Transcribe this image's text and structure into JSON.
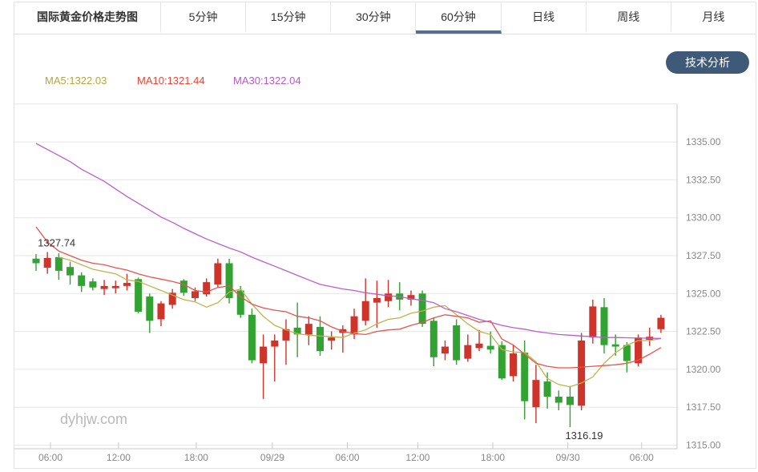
{
  "tabs": {
    "items": [
      {
        "label": "国际黄金价格走势图"
      },
      {
        "label": "5分钟"
      },
      {
        "label": "15分钟"
      },
      {
        "label": "30分钟"
      },
      {
        "label": "60分钟"
      },
      {
        "label": "日线"
      },
      {
        "label": "周线"
      },
      {
        "label": "月线"
      }
    ],
    "active_label": "60分钟",
    "active_index": 4
  },
  "toolbar": {
    "technical_analysis_label": "技术分析"
  },
  "legend": {
    "ma5": {
      "label": "MA5:1322.03",
      "color": "#b5a53c"
    },
    "ma10": {
      "label": "MA10:1321.44",
      "color": "#ee4433"
    },
    "ma30": {
      "label": "MA30:1322.04",
      "color": "#b05cc4"
    }
  },
  "watermark": "dyhjw.com",
  "chart_data": {
    "type": "candlestick",
    "title": "国际黄金价格走势图",
    "timeframe": "60分钟",
    "legend_values": {
      "MA5": 1322.03,
      "MA10": 1321.44,
      "MA30": 1322.04
    },
    "ylim": [
      1315.0,
      1337.5
    ],
    "grid": true,
    "y_axis": {
      "ticks": [
        {
          "label": "1335.00",
          "price": 1335.0
        },
        {
          "label": "1332.50",
          "price": 1332.5
        },
        {
          "label": "1330.00",
          "price": 1330.0
        },
        {
          "label": "1327.50",
          "price": 1327.5
        },
        {
          "label": "1325.00",
          "price": 1325.0
        },
        {
          "label": "1322.50",
          "price": 1322.5
        },
        {
          "label": "1320.00",
          "price": 1320.0
        },
        {
          "label": "1317.50",
          "price": 1317.5
        },
        {
          "label": "1315.00",
          "price": 1315.0
        }
      ]
    },
    "x_axis": {
      "ticks": [
        {
          "label": "06:00",
          "pos": 1.27
        },
        {
          "label": "12:00",
          "pos": 7.26
        },
        {
          "label": "18:00",
          "pos": 14.1
        },
        {
          "label": "09/29",
          "pos": 20.8
        },
        {
          "label": "06:00",
          "pos": 27.4
        },
        {
          "label": "12:00",
          "pos": 33.6
        },
        {
          "label": "18:00",
          "pos": 40.2
        },
        {
          "label": "09/30",
          "pos": 46.8
        },
        {
          "label": "06:00",
          "pos": 53.3
        }
      ]
    },
    "annotations": [
      {
        "text": "1327.74",
        "candle_index": 1,
        "price": 1327.74,
        "position": "above"
      },
      {
        "text": "1316.19",
        "candle_index": 47,
        "price": 1316.19,
        "position": "below"
      }
    ],
    "candles_ohlc": [
      [
        1327.3,
        1327.6,
        1326.5,
        1327.0
      ],
      [
        1326.7,
        1327.74,
        1326.3,
        1327.35
      ],
      [
        1327.4,
        1327.65,
        1325.9,
        1326.5
      ],
      [
        1326.75,
        1327.1,
        1325.6,
        1326.2
      ],
      [
        1326.2,
        1326.4,
        1325.1,
        1325.5
      ],
      [
        1325.8,
        1326.0,
        1325.2,
        1325.4
      ],
      [
        1325.3,
        1325.9,
        1324.9,
        1325.5
      ],
      [
        1325.35,
        1325.85,
        1325.0,
        1325.5
      ],
      [
        1325.5,
        1326.3,
        1325.2,
        1325.7
      ],
      [
        1325.95,
        1326.05,
        1323.7,
        1323.8
      ],
      [
        1324.8,
        1325.0,
        1322.4,
        1323.2
      ],
      [
        1323.3,
        1324.5,
        1322.85,
        1324.35
      ],
      [
        1324.25,
        1325.3,
        1324.0,
        1325.05
      ],
      [
        1325.85,
        1325.95,
        1324.85,
        1325.05
      ],
      [
        1324.7,
        1325.4,
        1324.5,
        1325.15
      ],
      [
        1324.95,
        1326.0,
        1324.8,
        1325.75
      ],
      [
        1325.6,
        1327.3,
        1325.4,
        1327.0
      ],
      [
        1327.0,
        1327.3,
        1324.35,
        1324.7
      ],
      [
        1325.2,
        1325.5,
        1323.4,
        1323.6
      ],
      [
        1323.6,
        1324.0,
        1320.4,
        1320.6
      ],
      [
        1320.4,
        1322.3,
        1318.05,
        1321.5
      ],
      [
        1321.5,
        1322.3,
        1319.2,
        1321.9
      ],
      [
        1321.9,
        1323.3,
        1320.3,
        1322.65
      ],
      [
        1322.75,
        1324.4,
        1320.8,
        1322.3
      ],
      [
        1322.3,
        1323.5,
        1321.6,
        1323.0
      ],
      [
        1322.8,
        1323.5,
        1320.9,
        1321.2
      ],
      [
        1321.9,
        1322.5,
        1321.3,
        1322.1
      ],
      [
        1322.4,
        1322.9,
        1321.1,
        1322.65
      ],
      [
        1322.3,
        1324.0,
        1322.0,
        1323.5
      ],
      [
        1323.2,
        1326.0,
        1322.9,
        1324.5
      ],
      [
        1324.4,
        1325.85,
        1322.75,
        1324.7
      ],
      [
        1324.5,
        1325.9,
        1324.1,
        1325.0
      ],
      [
        1325.0,
        1325.75,
        1323.9,
        1324.6
      ],
      [
        1324.6,
        1325.2,
        1324.2,
        1324.9
      ],
      [
        1325.0,
        1325.2,
        1322.8,
        1323.0
      ],
      [
        1323.2,
        1323.4,
        1320.2,
        1320.8
      ],
      [
        1321.05,
        1321.9,
        1320.6,
        1321.5
      ],
      [
        1322.9,
        1323.3,
        1320.3,
        1320.6
      ],
      [
        1320.7,
        1322.3,
        1320.5,
        1321.6
      ],
      [
        1321.4,
        1322.6,
        1321.2,
        1321.7
      ],
      [
        1321.55,
        1322.5,
        1321.05,
        1321.3
      ],
      [
        1321.6,
        1321.85,
        1319.3,
        1319.4
      ],
      [
        1319.55,
        1321.6,
        1319.2,
        1321.05
      ],
      [
        1321.1,
        1321.9,
        1316.7,
        1317.9
      ],
      [
        1317.5,
        1320.3,
        1316.45,
        1319.3
      ],
      [
        1319.2,
        1319.8,
        1317.4,
        1318.2
      ],
      [
        1318.2,
        1318.6,
        1317.3,
        1317.8
      ],
      [
        1318.2,
        1318.9,
        1316.19,
        1317.65
      ],
      [
        1317.6,
        1322.4,
        1317.3,
        1321.9
      ],
      [
        1322.1,
        1324.6,
        1321.7,
        1324.15
      ],
      [
        1324.1,
        1324.7,
        1321.05,
        1321.6
      ],
      [
        1321.65,
        1322.3,
        1320.9,
        1321.5
      ],
      [
        1321.6,
        1321.8,
        1319.8,
        1320.55
      ],
      [
        1320.4,
        1322.3,
        1320.2,
        1322.1
      ],
      [
        1321.95,
        1322.75,
        1321.55,
        1322.15
      ],
      [
        1322.65,
        1323.6,
        1322.4,
        1323.4
      ]
    ],
    "ma5": [
      null,
      null,
      1327.4,
      1327.2,
      1326.9,
      1326.6,
      1326.45,
      1326.3,
      1325.9,
      1325.8,
      1325.5,
      1325.2,
      1324.9,
      1324.6,
      1324.45,
      1324.1,
      1324.4,
      1325.1,
      1325.3,
      1324.3,
      1323.5,
      1322.9,
      1322.6,
      1322.35,
      1322.25,
      1322.2,
      1322.15,
      1322.1,
      1322.4,
      1322.6,
      1323.0,
      1323.3,
      1323.4,
      1323.7,
      1323.85,
      1324.1,
      1324.2,
      1323.6,
      1323.0,
      1322.5,
      1322.3,
      1321.3,
      1321.15,
      1321.1,
      1320.5,
      1319.4,
      1319.0,
      1318.85,
      1319.1,
      1319.5,
      1320.4,
      1321.1,
      1321.6,
      1321.9,
      1321.9,
      1322.03
    ],
    "ma10": [
      1329.4,
      1328.4,
      1327.8,
      1327.5,
      1327.2,
      1327.0,
      1326.9,
      1326.7,
      1326.55,
      1326.3,
      1326.1,
      1325.95,
      1325.8,
      1325.6,
      1325.2,
      1325.1,
      1325.4,
      1325.5,
      1324.8,
      1324.3,
      1324.05,
      1323.9,
      1323.8,
      1323.5,
      1323.4,
      1323.2,
      1322.8,
      1322.5,
      1322.35,
      1322.3,
      1322.5,
      1322.6,
      1322.65,
      1322.9,
      1323.1,
      1323.4,
      1323.6,
      1323.5,
      1323.4,
      1323.1,
      1323.2,
      1322.0,
      1321.6,
      1321.0,
      1320.4,
      1320.2,
      1320.1,
      1320.1,
      1320.15,
      1320.2,
      1320.25,
      1320.3,
      1320.4,
      1320.6,
      1321.0,
      1321.44
    ],
    "ma30": [
      1334.9,
      1334.5,
      1334.1,
      1333.7,
      1333.2,
      1332.8,
      1332.4,
      1331.9,
      1331.4,
      1330.95,
      1330.5,
      1330.05,
      1329.7,
      1329.3,
      1328.95,
      1328.6,
      1328.3,
      1328.0,
      1327.75,
      1327.4,
      1327.1,
      1326.8,
      1326.5,
      1326.2,
      1325.9,
      1325.6,
      1325.45,
      1325.3,
      1325.2,
      1325.05,
      1324.95,
      1324.85,
      1324.8,
      1324.65,
      1324.55,
      1324.4,
      1324.0,
      1323.8,
      1323.55,
      1323.3,
      1323.1,
      1322.9,
      1322.75,
      1322.65,
      1322.5,
      1322.4,
      1322.3,
      1322.25,
      1322.2,
      1322.15,
      1322.1,
      1322.1,
      1322.08,
      1322.06,
      1322.05,
      1322.04
    ],
    "colors": {
      "up": "#cf342b",
      "down": "#32a232",
      "ma5": "#c0b24a",
      "ma10": "#e4554d",
      "ma30": "#bb5ec9",
      "grid": "#e6e6e6",
      "axis": "#c9c9c9",
      "tick_label": "#888888",
      "annotation": "#333333",
      "active_tab_underline": "#53718f",
      "button_bg": "#3e5a78"
    }
  }
}
